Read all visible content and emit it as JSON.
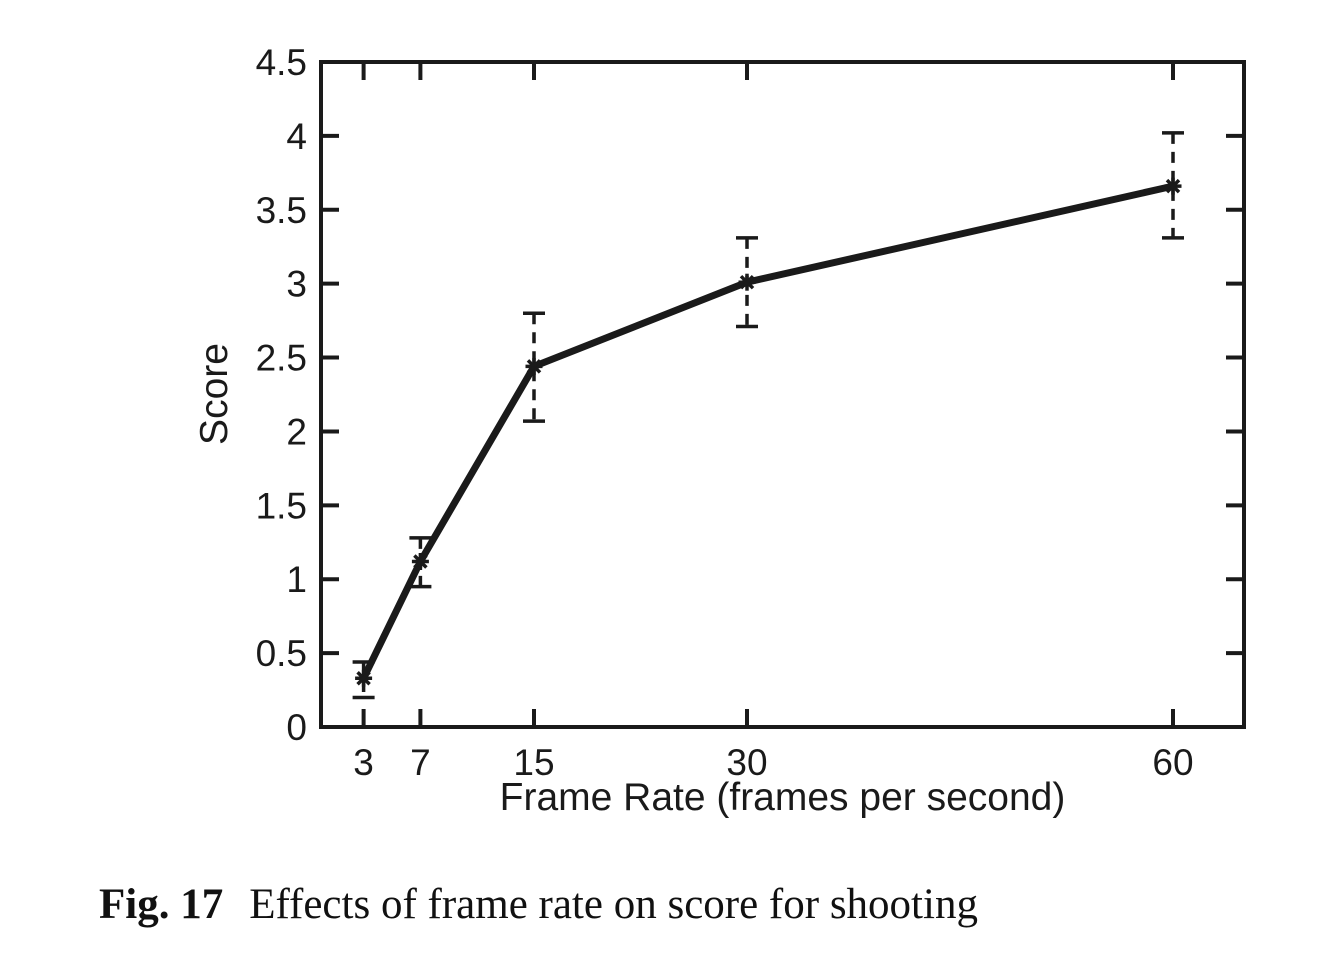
{
  "figure": {
    "caption_label": "Fig. 17",
    "caption_text": "Effects of frame rate on score for shooting"
  },
  "chart_data": {
    "type": "line",
    "title": "",
    "xlabel": "Frame Rate (frames per second)",
    "ylabel": "Score",
    "x": [
      3,
      7,
      15,
      30,
      60
    ],
    "series": [
      {
        "name": "score",
        "values": [
          0.33,
          1.12,
          2.44,
          3.01,
          3.66
        ],
        "error_low": [
          0.2,
          0.95,
          2.07,
          2.71,
          3.31
        ],
        "error_high": [
          0.44,
          1.28,
          2.8,
          3.31,
          4.02
        ]
      }
    ],
    "xlim": [
      0,
      65
    ],
    "ylim": [
      0,
      4.5
    ],
    "x_ticks": [
      3,
      7,
      15,
      30,
      60
    ],
    "y_ticks": [
      0,
      0.5,
      1,
      1.5,
      2,
      2.5,
      3,
      3.5,
      4,
      4.5
    ],
    "grid": false,
    "legend": "none",
    "line_color": "#1a1a1a",
    "marker": "asterisk",
    "error_bar_style": "dashed",
    "frame": "box-with-mirrored-inward-ticks"
  }
}
